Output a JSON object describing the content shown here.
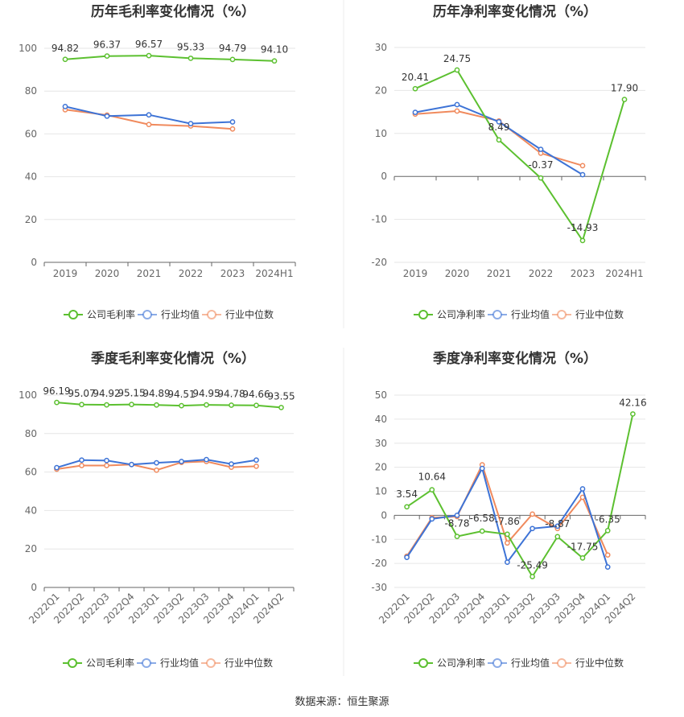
{
  "source_text": "数据来源：恒生聚源",
  "colors": {
    "company": "#5cc030",
    "industry_avg": "#3d73d6",
    "industry_median": "#f08a5d"
  },
  "chart_data": [
    {
      "type": "line",
      "title": "历年毛利率变化情况（%）",
      "categories": [
        "2019",
        "2020",
        "2021",
        "2022",
        "2023",
        "2024H1"
      ],
      "ylim": [
        0,
        100
      ],
      "yticks": [
        0,
        20,
        40,
        60,
        80,
        100
      ],
      "legend": "bottom",
      "series": [
        {
          "name": "公司毛利率",
          "key": "company",
          "values": [
            94.82,
            96.37,
            96.57,
            95.33,
            94.79,
            94.1
          ],
          "labels": [
            "94.82",
            "96.37",
            "96.57",
            "95.33",
            "94.79",
            "94.10"
          ]
        },
        {
          "name": "行业均值",
          "key": "industry_avg",
          "values": [
            72.8,
            68.3,
            68.9,
            64.8,
            65.6,
            null
          ]
        },
        {
          "name": "行业中位数",
          "key": "industry_median",
          "values": [
            71.3,
            68.8,
            64.4,
            63.7,
            62.3,
            null
          ]
        }
      ]
    },
    {
      "type": "line",
      "title": "历年净利率变化情况（%）",
      "categories": [
        "2019",
        "2020",
        "2021",
        "2022",
        "2023",
        "2024H1"
      ],
      "ylim": [
        -20,
        30
      ],
      "yticks": [
        -20,
        -10,
        0,
        10,
        20,
        30
      ],
      "legend": "bottom",
      "series": [
        {
          "name": "公司净利率",
          "key": "company",
          "values": [
            20.41,
            24.75,
            8.49,
            -0.37,
            -14.93,
            17.9
          ],
          "labels": [
            "20.41",
            "24.75",
            "8.49",
            "-0.37",
            "-14.93",
            "17.90"
          ]
        },
        {
          "name": "行业均值",
          "key": "industry_avg",
          "values": [
            14.9,
            16.7,
            12.7,
            6.3,
            0.4,
            null
          ]
        },
        {
          "name": "行业中位数",
          "key": "industry_median",
          "values": [
            14.5,
            15.2,
            12.9,
            5.4,
            2.5,
            null
          ]
        }
      ]
    },
    {
      "type": "line",
      "title": "季度毛利率变化情况（%）",
      "categories": [
        "2022Q1",
        "2022Q2",
        "2022Q3",
        "2022Q4",
        "2023Q1",
        "2023Q2",
        "2023Q3",
        "2023Q4",
        "2024Q1",
        "2024Q2"
      ],
      "ylim": [
        0,
        100
      ],
      "yticks": [
        0,
        20,
        40,
        60,
        80,
        100
      ],
      "legend": "bottom",
      "series": [
        {
          "name": "公司毛利率",
          "key": "company",
          "values": [
            96.19,
            95.07,
            94.92,
            95.15,
            94.89,
            94.51,
            94.95,
            94.78,
            94.66,
            93.55
          ],
          "labels": [
            "96.19",
            "95.07",
            "94.92",
            "95.15",
            "94.89",
            "94.51",
            "94.95",
            "94.78",
            "94.66",
            "93.55"
          ]
        },
        {
          "name": "行业均值",
          "key": "industry_avg",
          "values": [
            62.3,
            66.2,
            66.0,
            63.9,
            64.8,
            65.5,
            66.5,
            64.2,
            66.2,
            null
          ]
        },
        {
          "name": "行业中位数",
          "key": "industry_median",
          "values": [
            61.5,
            63.4,
            63.4,
            63.9,
            61.0,
            65.0,
            65.5,
            62.5,
            63.0,
            null
          ]
        }
      ]
    },
    {
      "type": "line",
      "title": "季度净利率变化情况（%）",
      "categories": [
        "2022Q1",
        "2022Q2",
        "2022Q3",
        "2022Q4",
        "2023Q1",
        "2023Q2",
        "2023Q3",
        "2023Q4",
        "2024Q1",
        "2024Q2"
      ],
      "ylim": [
        -30,
        50
      ],
      "yticks": [
        -30,
        -20,
        -10,
        0,
        10,
        20,
        30,
        40,
        50
      ],
      "legend": "bottom",
      "series": [
        {
          "name": "公司净利率",
          "key": "company",
          "values": [
            3.54,
            10.64,
            -8.78,
            -6.58,
            -7.86,
            -25.49,
            -8.87,
            -17.75,
            -6.35,
            42.16
          ],
          "labels": [
            "3.54",
            "10.64",
            "-8.78",
            "-6.58",
            "-7.86",
            "-25.49",
            "-8.87",
            "-17.75",
            "-6.35",
            "42.16"
          ]
        },
        {
          "name": "行业均值",
          "key": "industry_avg",
          "values": [
            -17.5,
            -1.5,
            0.0,
            19.5,
            -19.5,
            -5.5,
            -4.5,
            11.0,
            -21.5,
            null
          ]
        },
        {
          "name": "行业中位数",
          "key": "industry_median",
          "values": [
            -17.0,
            -1.0,
            -0.5,
            21.0,
            -11.5,
            0.5,
            -5.5,
            7.5,
            -16.5,
            null
          ]
        }
      ]
    }
  ]
}
